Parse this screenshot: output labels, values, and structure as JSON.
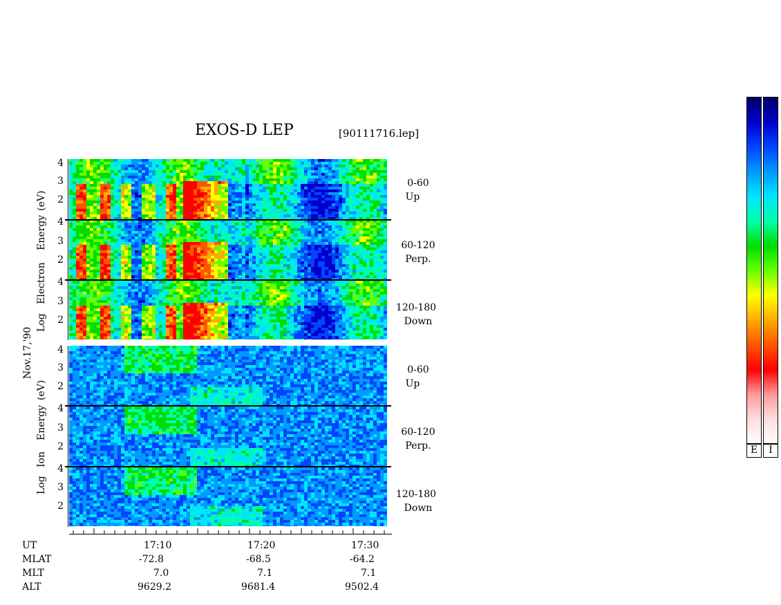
{
  "chart_data": {
    "type": "heatmap",
    "title": "EXOS-D LEP",
    "file_label": "[90111716.lep]",
    "date_label": "Nov.17,'90",
    "groups": [
      {
        "name": "Electron",
        "ylabel": "Log Electron Energy (eV)",
        "ylabel_parts": [
          "Log",
          "Electron",
          "Energy",
          "(eV)"
        ],
        "panels": [
          {
            "angle": "0-60",
            "dir": "Up"
          },
          {
            "angle": "60-120",
            "dir": "Perp."
          },
          {
            "angle": "120-180",
            "dir": "Down"
          }
        ]
      },
      {
        "name": "Ion",
        "ylabel": "Log Ion Energy (eV)",
        "ylabel_parts": [
          "Log",
          "Ion",
          "Energy",
          "(eV)"
        ],
        "panels": [
          {
            "angle": "0-60",
            "dir": "Up"
          },
          {
            "angle": "60-120",
            "dir": "Perp."
          },
          {
            "angle": "120-180",
            "dir": "Down"
          }
        ]
      }
    ],
    "y_ticks": [
      "4",
      "3",
      "2"
    ],
    "ylim": [
      1,
      4.3
    ],
    "x_range_ut": [
      "17:02",
      "17:32"
    ],
    "x_ticks": [
      "17:10",
      "17:20",
      "17:30"
    ],
    "orbit_table": {
      "labels": [
        "UT",
        "MLAT",
        "MLT",
        "ALT"
      ],
      "rows": {
        "MLAT": [
          "-72.8",
          "-68.5",
          "-64.2"
        ],
        "MLT": [
          "7.0",
          "7.1",
          "7.1"
        ],
        "ALT": [
          "9629.2",
          "9681.4",
          "9502.4"
        ]
      }
    },
    "colorbars": [
      {
        "label": "E"
      },
      {
        "label": "I"
      }
    ],
    "colormap": [
      "#000066",
      "#0000cc",
      "#0044ff",
      "#0099ff",
      "#00e5ff",
      "#00ffaa",
      "#00dd00",
      "#66ff00",
      "#ffff00",
      "#ffaa00",
      "#ff5500",
      "#ff0000",
      "#ff9999",
      "#ffdddd",
      "#ffffff"
    ]
  }
}
